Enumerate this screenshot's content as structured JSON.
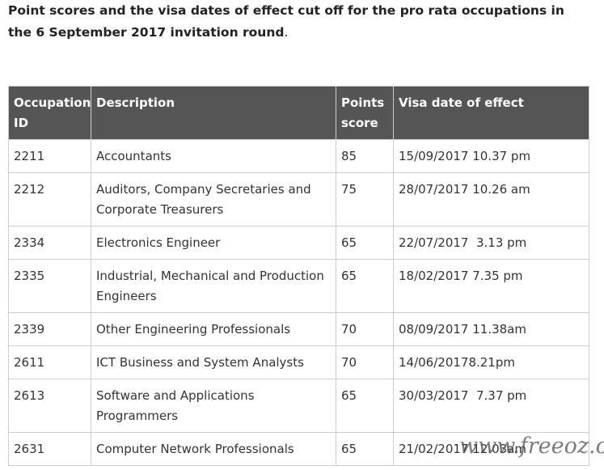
{
  "heading": {
    "text": "Point scores and the visa dates of effect cut off for the pro rata occupations in the 6 September 2017 invitation round",
    "end": "."
  },
  "table": {
    "header": [
      "Occupation ID",
      "Description",
      "Points score",
      "Visa date of effect"
    ],
    "rows": [
      [
        "2211",
        "Accountants",
        "85",
        "15/09/2017 10.37 pm"
      ],
      [
        "2212",
        "Auditors, Company Secretaries and Corporate Treasurers",
        "75",
        "28/07/2017 10.26 am"
      ],
      [
        "2334",
        "Electronics Engineer",
        "65",
        "22/07/2017  3.13 pm"
      ],
      [
        "2335",
        "Industrial, Mechanical and Production Engineers",
        "65",
        "18/02/2017 7.35 pm"
      ],
      [
        "2339",
        "Other Engineering Professionals",
        "70",
        "08/09/2017 11.38am"
      ],
      [
        "2611",
        "ICT Business and System Analysts",
        "70",
        "14/06/20178.21pm"
      ],
      [
        "2613",
        "Software and Applications Programmers",
        "65",
        "30/03/2017  7.37 pm"
      ],
      [
        "2631",
        "Computer Network Professionals",
        "65",
        "21/02/2017 12.03am"
      ]
    ]
  },
  "watermark": "www.freeoz.org"
}
